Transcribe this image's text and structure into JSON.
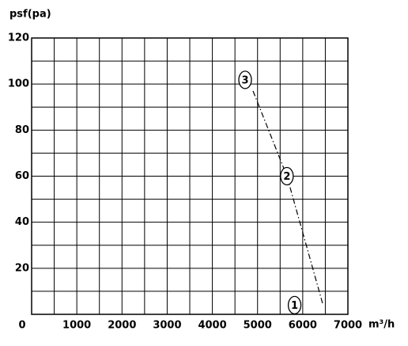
{
  "chart_data": {
    "type": "line",
    "ylabel": "psf(pa)",
    "xlabel": "m³/h",
    "x": [
      4900,
      5650,
      6450
    ],
    "series": [
      {
        "values": [
          97,
          60,
          4
        ],
        "color": "#000000",
        "point_labels": [
          "3",
          "2",
          "1"
        ]
      }
    ],
    "xlim": [
      0,
      7000
    ],
    "ylim": [
      0,
      120
    ],
    "xticks": [
      0,
      1000,
      2000,
      3000,
      4000,
      5000,
      6000,
      7000
    ],
    "yticks": [
      20,
      40,
      60,
      80,
      100,
      120
    ],
    "x_minor_ticks": [
      500,
      1500,
      2500,
      3500,
      4500,
      5500,
      6500
    ],
    "y_minor_ticks": [
      10,
      30,
      50,
      70,
      90,
      110
    ],
    "grid": true
  }
}
